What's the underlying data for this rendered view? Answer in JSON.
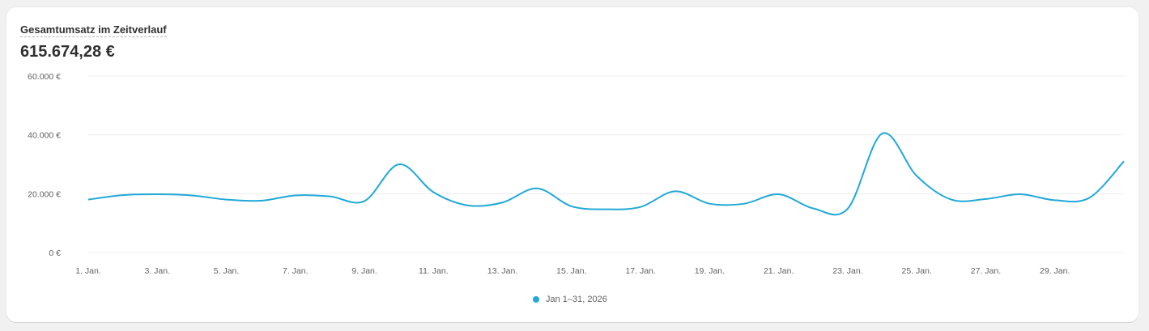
{
  "header": {
    "title": "Gesamtumsatz im Zeitverlauf",
    "total": "615.674,28 €"
  },
  "chart_data": {
    "type": "line",
    "title": "Gesamtumsatz im Zeitverlauf",
    "ylim": [
      0,
      60000
    ],
    "y_ticks": [
      0,
      20000,
      40000,
      60000
    ],
    "y_tick_labels": [
      "0 €",
      "20.000 €",
      "40.000 €",
      "60.000 €"
    ],
    "x_tick_labels": [
      "1. Jan.",
      "3. Jan.",
      "5. Jan.",
      "7. Jan.",
      "9. Jan.",
      "11. Jan.",
      "13. Jan.",
      "15. Jan.",
      "17. Jan.",
      "19. Jan.",
      "21. Jan.",
      "23. Jan.",
      "25. Jan.",
      "27. Jan.",
      "29. Jan."
    ],
    "grid": true,
    "legend_position": "bottom-center",
    "x": [
      1,
      2,
      3,
      4,
      5,
      6,
      7,
      8,
      9,
      10,
      11,
      12,
      13,
      14,
      15,
      16,
      17,
      18,
      19,
      20,
      21,
      22,
      23,
      24,
      25,
      26,
      27,
      28,
      29,
      30,
      31
    ],
    "series": [
      {
        "name": "Jan 1–31, 2026",
        "color": "#20a8d8",
        "values": [
          18000,
          19500,
          19800,
          19400,
          18000,
          17600,
          19400,
          19100,
          17500,
          30000,
          20500,
          16000,
          17000,
          21800,
          15700,
          14700,
          15500,
          20800,
          16600,
          16600,
          19800,
          15000,
          14900,
          40500,
          26000,
          18000,
          18200,
          19800,
          17800,
          18600,
          31000
        ]
      }
    ]
  }
}
